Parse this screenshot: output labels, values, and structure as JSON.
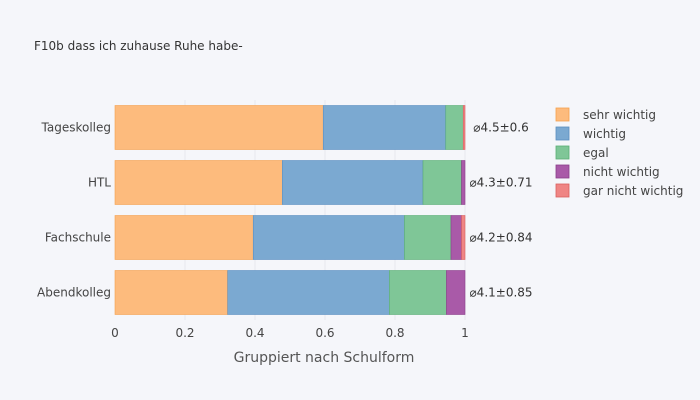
{
  "chart_data": {
    "type": "bar",
    "orientation": "horizontal",
    "stacked": true,
    "title": "F10b dass ich zuhause Ruhe habe-",
    "xlabel": "Gruppiert nach Schulform",
    "ylabel": "",
    "xlim": [
      0,
      1.2
    ],
    "xticks": [
      0,
      0.2,
      0.4,
      0.6,
      0.8,
      1
    ],
    "xtick_labels": [
      "0",
      "0.2",
      "0.4",
      "0.6",
      "0.8",
      "1"
    ],
    "grid": true,
    "legend_position": "right",
    "categories": [
      "Tageskolleg",
      "HTL",
      "Fachschule",
      "Abendkolleg"
    ],
    "series": [
      {
        "name": "sehr wichtig",
        "color": "#fdbb7d",
        "border": "#f5a04e",
        "values": [
          0.595,
          0.478,
          0.395,
          0.322
        ]
      },
      {
        "name": "wichtig",
        "color": "#7ba9d1",
        "border": "#5b8fc0",
        "values": [
          0.35,
          0.402,
          0.432,
          0.462
        ]
      },
      {
        "name": "egal",
        "color": "#7fc697",
        "border": "#5aae75",
        "values": [
          0.05,
          0.11,
          0.133,
          0.163
        ]
      },
      {
        "name": "nicht wichtig",
        "color": "#a95aa8",
        "border": "#8a3f8a",
        "values": [
          0.0,
          0.01,
          0.03,
          0.053
        ]
      },
      {
        "name": "gar nicht wichtig",
        "color": "#ef8584",
        "border": "#d96060",
        "values": [
          0.005,
          0.0,
          0.01,
          0.0
        ]
      }
    ],
    "annotations": [
      "⌀4.5±0.6",
      "⌀4.3±0.71",
      "⌀4.2±0.84",
      "⌀4.1±0.85"
    ]
  }
}
